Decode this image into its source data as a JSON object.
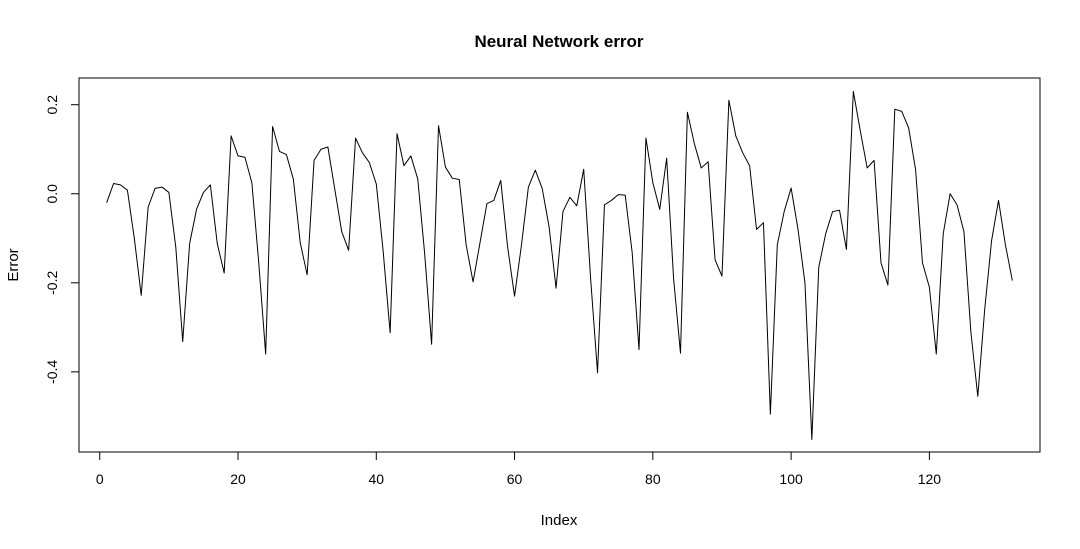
{
  "chart_data": {
    "type": "line",
    "title": "Neural Network error",
    "xlabel": "Index",
    "ylabel": "Error",
    "xlim": [
      -3,
      136
    ],
    "ylim": [
      -0.58,
      0.26
    ],
    "x_ticks": [
      0,
      20,
      40,
      60,
      80,
      100,
      120
    ],
    "x_tick_labels": [
      "0",
      "20",
      "40",
      "60",
      "80",
      "100",
      "120"
    ],
    "y_ticks": [
      -0.4,
      -0.2,
      0.0,
      0.2
    ],
    "y_tick_labels": [
      "-0.4",
      "-0.2",
      "0.0",
      "0.2"
    ],
    "grid": false,
    "line_color": "#000000",
    "series": [
      {
        "x": [
          1,
          2,
          3,
          4,
          5,
          6,
          7,
          8,
          9,
          10,
          11,
          12,
          13,
          14,
          15,
          16,
          17,
          18,
          19,
          20,
          21,
          22,
          23,
          24,
          25,
          26,
          27,
          28,
          29,
          30,
          31,
          32,
          33,
          34,
          35,
          36,
          37,
          38,
          39,
          40,
          41,
          42,
          43,
          44,
          45,
          46,
          47,
          48,
          49,
          50,
          51,
          52,
          53,
          54,
          55,
          56,
          57,
          58,
          59,
          60,
          61,
          62,
          63,
          64,
          65,
          66,
          67,
          68,
          69,
          70,
          71,
          72,
          73,
          74,
          75,
          76,
          77,
          78,
          79,
          80,
          81,
          82,
          83,
          84,
          85,
          86,
          87,
          88,
          89,
          90,
          91,
          92,
          93,
          94,
          95,
          96,
          97,
          98,
          99,
          100,
          101,
          102,
          103,
          104,
          105,
          106,
          107,
          108,
          109,
          110,
          111,
          112,
          113,
          114,
          115,
          116,
          117,
          118,
          119,
          120,
          121,
          122,
          123,
          124,
          125,
          126,
          127,
          128,
          129,
          130,
          131,
          132
        ],
        "values": [
          -0.02,
          0.023,
          0.02,
          0.008,
          -0.1,
          -0.228,
          -0.03,
          0.012,
          0.015,
          0.003,
          -0.12,
          -0.332,
          -0.112,
          -0.035,
          0.003,
          0.02,
          -0.112,
          -0.178,
          0.13,
          0.085,
          0.082,
          0.025,
          -0.155,
          -0.36,
          0.151,
          0.095,
          0.088,
          0.033,
          -0.11,
          -0.182,
          0.075,
          0.1,
          0.105,
          0.01,
          -0.085,
          -0.127,
          0.125,
          0.092,
          0.07,
          0.022,
          -0.13,
          -0.312,
          0.135,
          0.063,
          0.085,
          0.033,
          -0.135,
          -0.338,
          0.153,
          0.06,
          0.035,
          0.032,
          -0.115,
          -0.198,
          -0.11,
          -0.022,
          -0.015,
          0.03,
          -0.12,
          -0.23,
          -0.115,
          0.015,
          0.053,
          0.012,
          -0.075,
          -0.212,
          -0.04,
          -0.008,
          -0.027,
          0.055,
          -0.19,
          -0.402,
          -0.025,
          -0.015,
          -0.002,
          -0.003,
          -0.13,
          -0.35,
          0.125,
          0.025,
          -0.035,
          0.08,
          -0.19,
          -0.358,
          0.183,
          0.113,
          0.058,
          0.072,
          -0.148,
          -0.185,
          0.21,
          0.13,
          0.092,
          0.063,
          -0.08,
          -0.065,
          -0.495,
          -0.115,
          -0.04,
          0.013,
          -0.08,
          -0.2,
          -0.552,
          -0.165,
          -0.09,
          -0.04,
          -0.037,
          -0.125,
          0.23,
          0.142,
          0.058,
          0.075,
          -0.155,
          -0.205,
          0.19,
          0.185,
          0.148,
          0.055,
          -0.155,
          -0.21,
          -0.36,
          -0.09,
          0.0,
          -0.025,
          -0.085,
          -0.31,
          -0.455,
          -0.26,
          -0.105,
          -0.015,
          -0.115,
          -0.195
        ]
      }
    ]
  }
}
